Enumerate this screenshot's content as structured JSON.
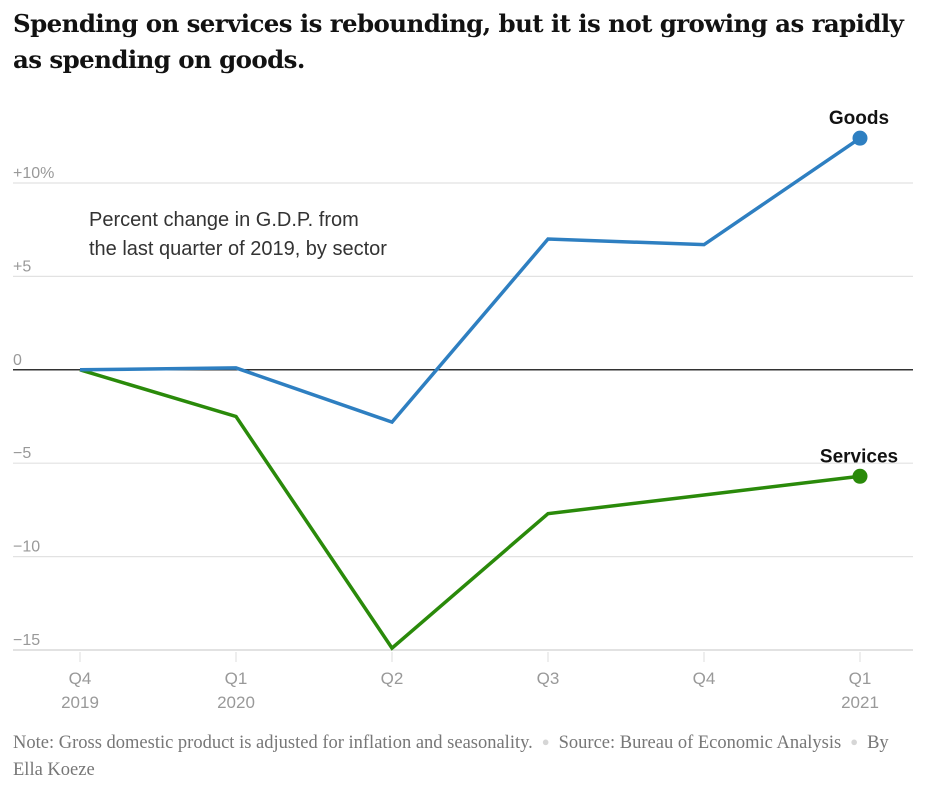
{
  "header": {
    "title": "Spending on services is rebounding, but it is not growing as rapidly as spending on goods."
  },
  "chart_data": {
    "type": "line",
    "title": "Spending on services is rebounding, but it is not growing as rapidly as spending on goods.",
    "annotation": [
      "Percent change in G.D.P. from",
      "the last quarter of 2019, by sector"
    ],
    "xlabel": "",
    "ylabel": "",
    "x": [
      "Q4 2019",
      "Q1 2020",
      "Q2 2020",
      "Q3 2020",
      "Q4 2020",
      "Q1 2021"
    ],
    "x_tick_labels": [
      {
        "line1": "Q4",
        "line2": "2019"
      },
      {
        "line1": "Q1",
        "line2": "2020"
      },
      {
        "line1": "Q2",
        "line2": ""
      },
      {
        "line1": "Q3",
        "line2": ""
      },
      {
        "line1": "Q4",
        "line2": ""
      },
      {
        "line1": "Q1",
        "line2": "2021"
      }
    ],
    "y_ticks": [
      10,
      5,
      0,
      -5,
      -10,
      -15
    ],
    "y_tick_labels": [
      "+10%",
      "+5",
      "0",
      "−5",
      "−10",
      "−15"
    ],
    "ylim": [
      -15,
      10
    ],
    "grid": true,
    "series": [
      {
        "name": "Goods",
        "color": "#2e7fc1",
        "values": [
          0,
          0.1,
          -2.8,
          7.0,
          6.7,
          12.4
        ]
      },
      {
        "name": "Services",
        "color": "#2a8a0a",
        "values": [
          0,
          -2.5,
          -14.9,
          -7.7,
          -6.7,
          -5.7
        ]
      }
    ],
    "legend": "direct labels at line ends"
  },
  "footer": {
    "note": "Note: Gross domestic product is adjusted for inflation and seasonality.",
    "source": "Source: Bureau of Economic Analysis",
    "byline": "By Ella Koeze",
    "separator": "●"
  }
}
